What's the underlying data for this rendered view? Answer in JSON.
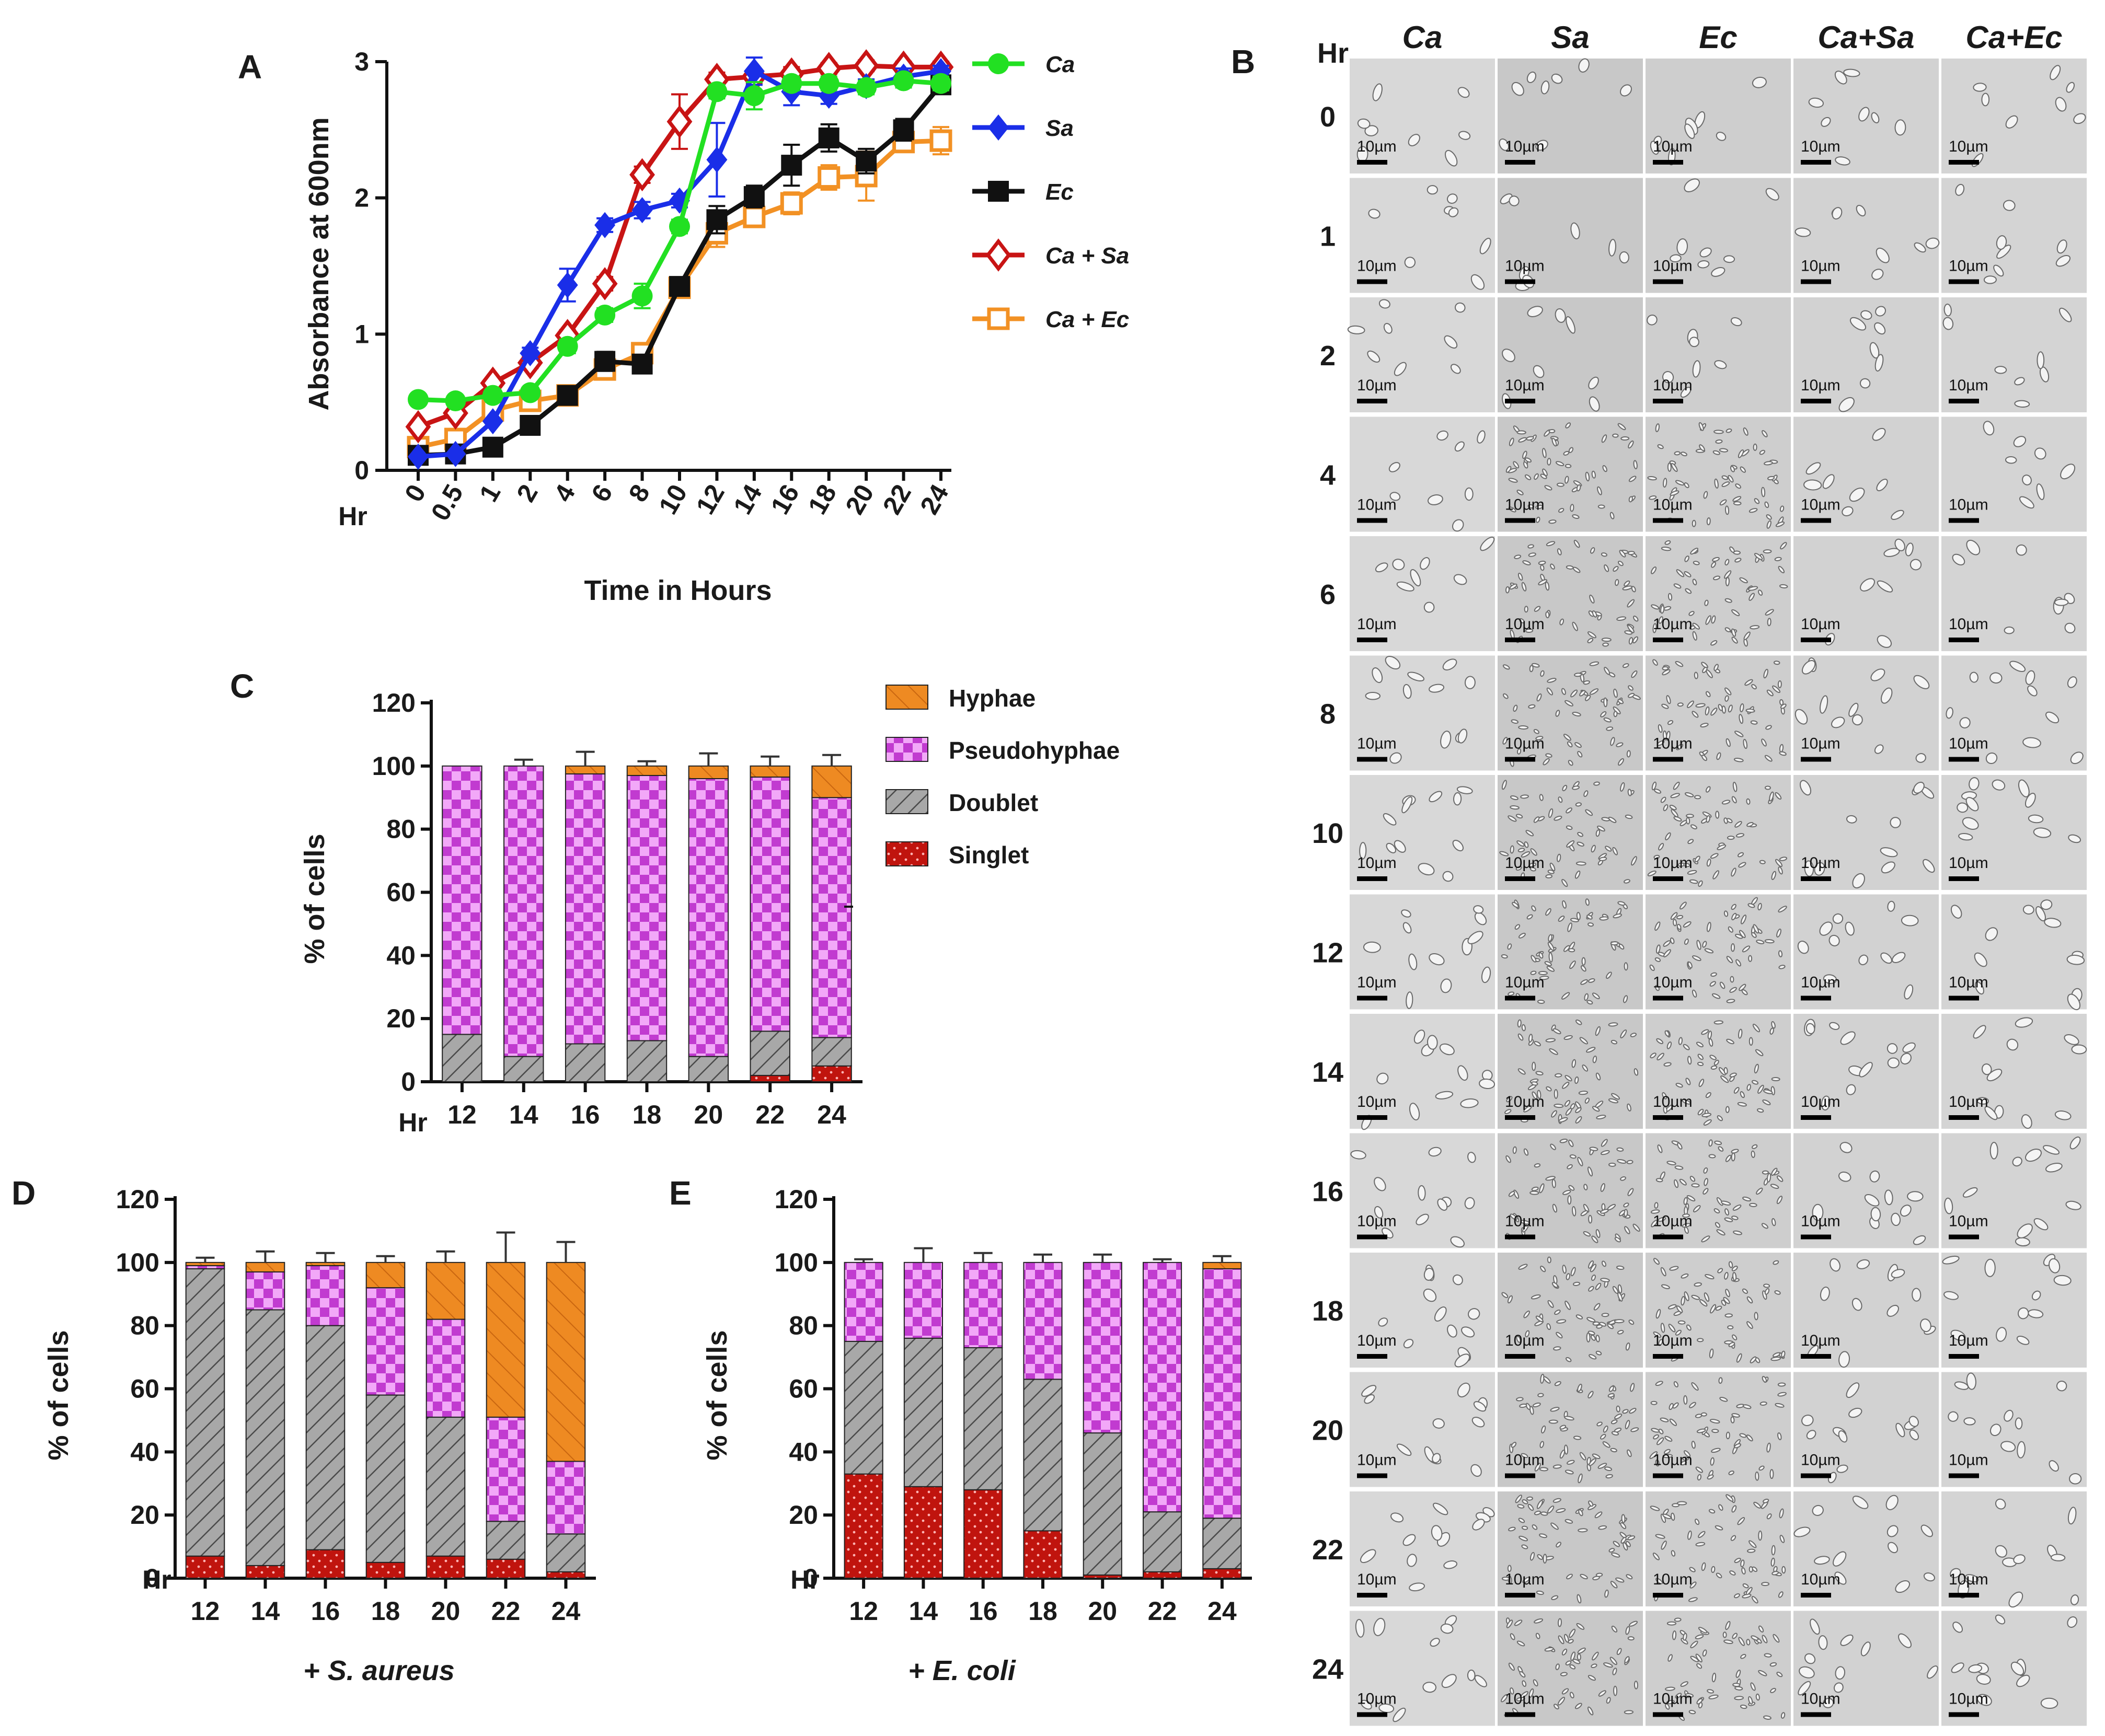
{
  "colors": {
    "Ca": "#22e022",
    "Sa": "#1a2ee8",
    "Ec": "#111111",
    "CaSa": "#c81414",
    "CaEc": "#f29124",
    "hyphae": "#ee8a22",
    "pseudo_a": "#c13bd0",
    "pseudo_b": "#f2a8f8",
    "doublet": "#a8a8a8",
    "singlet": "#c0140e"
  },
  "panelA": {
    "letter": "A",
    "chart_data": {
      "type": "line",
      "title": "",
      "xlabel": "Time in Hours",
      "ylabel": "Absorbance at 600nm",
      "hr_label": "Hr",
      "categories": [
        "0",
        "0.5",
        "1",
        "2",
        "4",
        "6",
        "8",
        "10",
        "12",
        "14",
        "16",
        "18",
        "20",
        "22",
        "24"
      ],
      "ylim": [
        0,
        3
      ],
      "yticks": [
        "0",
        "1",
        "2",
        "3"
      ],
      "series": [
        {
          "name": "Ca",
          "key": "Ca",
          "marker": "circle",
          "values": [
            0.52,
            0.51,
            0.55,
            0.57,
            0.91,
            1.14,
            1.28,
            1.79,
            2.78,
            2.75,
            2.84,
            2.84,
            2.81,
            2.86,
            2.84
          ],
          "errors": [
            0.03,
            0.03,
            0.03,
            0.03,
            0.05,
            0.05,
            0.09,
            0.05,
            0.05,
            0.1,
            0.05,
            0.05,
            0.05,
            0.05,
            0.05
          ]
        },
        {
          "name": "Sa",
          "key": "Sa",
          "marker": "diamond",
          "values": [
            0.1,
            0.12,
            0.36,
            0.86,
            1.36,
            1.8,
            1.91,
            1.98,
            2.28,
            2.93,
            2.78,
            2.75,
            2.82,
            2.89,
            2.93
          ],
          "errors": [
            0.02,
            0.02,
            0.03,
            0.04,
            0.12,
            0.05,
            0.06,
            0.05,
            0.27,
            0.1,
            0.1,
            0.06,
            0.05,
            0.06,
            0.04
          ]
        },
        {
          "name": "Ec",
          "key": "Ec",
          "marker": "square",
          "values": [
            0.11,
            0.12,
            0.17,
            0.33,
            0.55,
            0.8,
            0.78,
            1.35,
            1.84,
            2.01,
            2.24,
            2.44,
            2.27,
            2.5,
            2.83
          ],
          "errors": [
            0.02,
            0.02,
            0.02,
            0.03,
            0.04,
            0.07,
            0.05,
            0.06,
            0.1,
            0.08,
            0.15,
            0.1,
            0.09,
            0.08,
            0.06
          ]
        },
        {
          "name": "Ca + Sa",
          "key": "CaSa",
          "marker": "open-diamond",
          "values": [
            0.32,
            0.42,
            0.64,
            0.79,
            0.99,
            1.37,
            2.17,
            2.56,
            2.87,
            2.89,
            2.91,
            2.95,
            2.97,
            2.96,
            2.96
          ],
          "errors": [
            0.03,
            0.03,
            0.03,
            0.04,
            0.04,
            0.05,
            0.06,
            0.2,
            0.05,
            0.05,
            0.05,
            0.04,
            0.04,
            0.04,
            0.04
          ]
        },
        {
          "name": "Ca + Ec",
          "key": "CaEc",
          "marker": "open-square",
          "values": [
            0.17,
            0.23,
            0.44,
            0.51,
            0.55,
            0.74,
            0.86,
            1.34,
            1.74,
            1.86,
            1.96,
            2.15,
            2.16,
            2.41,
            2.42
          ],
          "errors": [
            0.02,
            0.02,
            0.03,
            0.03,
            0.04,
            0.05,
            0.05,
            0.06,
            0.1,
            0.07,
            0.08,
            0.09,
            0.18,
            0.07,
            0.1
          ]
        }
      ]
    }
  },
  "panelB": {
    "letter": "B",
    "hr_label": "Hr",
    "columns": [
      "Ca",
      "Sa",
      "Ec",
      "Ca+Sa",
      "Ca+Ec"
    ],
    "rows": [
      "0",
      "1",
      "2",
      "4",
      "6",
      "8",
      "10",
      "12",
      "14",
      "16",
      "18",
      "20",
      "22",
      "24"
    ],
    "scale_label": "10µm"
  },
  "stack_legend": [
    {
      "name": "Hyphae",
      "key": "hyphae"
    },
    {
      "name": "Pseudohyphae",
      "key": "pseudo"
    },
    {
      "name": "Doublet",
      "key": "doublet"
    },
    {
      "name": "Singlet",
      "key": "singlet"
    }
  ],
  "panelC": {
    "letter": "C",
    "chart_data": {
      "type": "bar",
      "stacked": true,
      "title": "",
      "xlabel": "",
      "ylabel": "% of cells",
      "hr_label": "Hr",
      "categories": [
        "12",
        "14",
        "16",
        "18",
        "20",
        "22",
        "24"
      ],
      "ylim": [
        0,
        120
      ],
      "yticks": [
        "0",
        "20",
        "40",
        "60",
        "80",
        "100",
        "120"
      ],
      "series": [
        {
          "name": "Singlet",
          "values": [
            0,
            0,
            0,
            0,
            0,
            2,
            5
          ]
        },
        {
          "name": "Doublet",
          "values": [
            15,
            8,
            12,
            13,
            8,
            14,
            9
          ]
        },
        {
          "name": "Pseudohyphae",
          "values": [
            85,
            92,
            85.5,
            84,
            88,
            80.5,
            76
          ]
        },
        {
          "name": "Hyphae",
          "values": [
            0,
            0,
            2.5,
            3,
            4,
            3.5,
            10
          ]
        }
      ],
      "errors": [
        0,
        2,
        4.5,
        1.5,
        4,
        3,
        3.5
      ]
    }
  },
  "panelD": {
    "letter": "D",
    "caption": "+ S. aureus",
    "chart_data": {
      "type": "bar",
      "stacked": true,
      "title": "",
      "xlabel": "+ S. aureus",
      "ylabel": "% of cells",
      "hr_label": "Hr",
      "categories": [
        "12",
        "14",
        "16",
        "18",
        "20",
        "22",
        "24"
      ],
      "ylim": [
        0,
        120
      ],
      "yticks": [
        "0",
        "20",
        "40",
        "60",
        "80",
        "100",
        "120"
      ],
      "series": [
        {
          "name": "Singlet",
          "values": [
            7,
            4,
            9,
            5,
            7,
            6,
            2
          ]
        },
        {
          "name": "Doublet",
          "values": [
            91,
            81,
            71,
            53,
            44,
            12,
            12
          ]
        },
        {
          "name": "Pseudohyphae",
          "values": [
            1,
            12,
            19,
            34,
            31,
            33,
            23
          ]
        },
        {
          "name": "Hyphae",
          "values": [
            1,
            3,
            1,
            8,
            18,
            49,
            63
          ]
        }
      ],
      "errors": [
        1.5,
        3.5,
        3,
        2,
        3.5,
        9.5,
        6.5
      ]
    }
  },
  "panelE": {
    "letter": "E",
    "caption": "+ E. coli",
    "chart_data": {
      "type": "bar",
      "stacked": true,
      "title": "",
      "xlabel": "+ E. coli",
      "ylabel": "% of cells",
      "hr_label": "Hr",
      "categories": [
        "12",
        "14",
        "16",
        "18",
        "20",
        "22",
        "24"
      ],
      "ylim": [
        0,
        120
      ],
      "yticks": [
        "0",
        "20",
        "40",
        "60",
        "80",
        "100",
        "120"
      ],
      "series": [
        {
          "name": "Singlet",
          "values": [
            33,
            29,
            28,
            15,
            1,
            2,
            3
          ]
        },
        {
          "name": "Doublet",
          "values": [
            42,
            47,
            45,
            48,
            45,
            19,
            16
          ]
        },
        {
          "name": "Pseudohyphae",
          "values": [
            25,
            24,
            27,
            37,
            54,
            79,
            79
          ]
        },
        {
          "name": "Hyphae",
          "values": [
            0,
            0,
            0,
            0,
            0,
            0,
            2
          ]
        }
      ],
      "errors": [
        1,
        4.5,
        3,
        2.5,
        2.5,
        1,
        2
      ]
    }
  }
}
